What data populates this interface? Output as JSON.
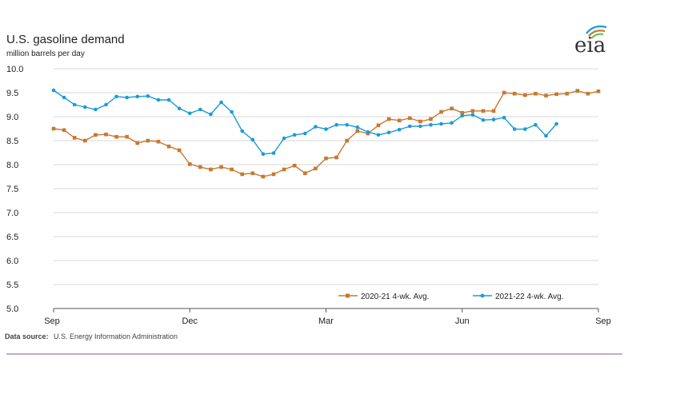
{
  "chart_data": {
    "type": "line",
    "title": "U.S. gasoline demand",
    "subtitle": "million barrels per day",
    "source_label": "Data source:",
    "source_text": "U.S. Energy Information Administration",
    "logo_text": "eia",
    "ylim": [
      5.0,
      10.0
    ],
    "y_ticks": [
      "5.0",
      "5.5",
      "6.0",
      "6.5",
      "7.0",
      "7.5",
      "8.0",
      "8.5",
      "9.0",
      "9.5",
      "10.0"
    ],
    "x_ticks": [
      {
        "label": "Sep",
        "week": 0
      },
      {
        "label": "Dec",
        "week": 13
      },
      {
        "label": "Mar",
        "week": 26
      },
      {
        "label": "Jun",
        "week": 39
      },
      {
        "label": "Sep",
        "week": 52
      }
    ],
    "grid": true,
    "legend_position": "bottom-right",
    "series": [
      {
        "name": "2020-21  4-wk. Avg.",
        "color": "#c8782f",
        "marker": "square",
        "values": [
          8.75,
          8.72,
          8.56,
          8.5,
          8.62,
          8.63,
          8.58,
          8.58,
          8.45,
          8.5,
          8.48,
          8.38,
          8.3,
          8.01,
          7.95,
          7.9,
          7.95,
          7.9,
          7.8,
          7.82,
          7.75,
          7.8,
          7.9,
          7.98,
          7.82,
          7.92,
          8.13,
          8.15,
          8.5,
          8.7,
          8.65,
          8.82,
          8.95,
          8.92,
          8.97,
          8.9,
          8.95,
          9.1,
          9.17,
          9.08,
          9.12,
          9.12,
          9.12,
          9.5,
          9.48,
          9.45,
          9.48,
          9.44,
          9.47,
          9.48,
          9.54,
          9.48,
          9.53
        ]
      },
      {
        "name": "2021-22  4-wk. Avg.",
        "color": "#1a9bd7",
        "marker": "circle",
        "values": [
          9.55,
          9.4,
          9.25,
          9.2,
          9.15,
          9.25,
          9.42,
          9.4,
          9.42,
          9.43,
          9.35,
          9.35,
          9.17,
          9.07,
          9.15,
          9.05,
          9.3,
          9.1,
          8.7,
          8.52,
          8.22,
          8.24,
          8.55,
          8.62,
          8.65,
          8.79,
          8.74,
          8.83,
          8.83,
          8.78,
          8.68,
          8.62,
          8.67,
          8.73,
          8.8,
          8.8,
          8.83,
          8.85,
          8.87,
          9.02,
          9.04,
          8.93,
          8.94,
          8.98,
          8.74,
          8.74,
          8.83,
          8.6,
          8.85
        ]
      }
    ]
  }
}
